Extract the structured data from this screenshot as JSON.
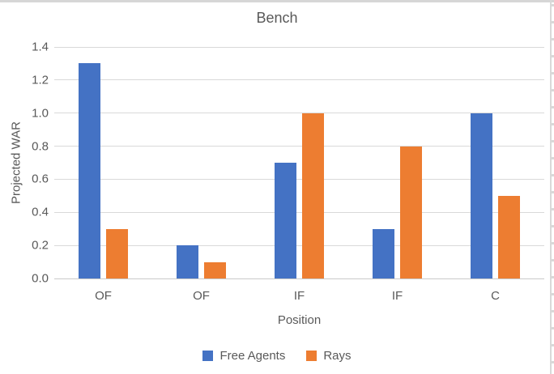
{
  "chart_data": {
    "type": "bar",
    "title": "Bench",
    "xlabel": "Position",
    "ylabel": "Projected WAR",
    "categories": [
      "OF",
      "OF",
      "IF",
      "IF",
      "C"
    ],
    "series": [
      {
        "name": "Free Agents",
        "color": "#4472C4",
        "values": [
          1.3,
          0.2,
          0.7,
          0.3,
          1.0
        ]
      },
      {
        "name": "Rays",
        "color": "#ED7D31",
        "values": [
          0.3,
          0.1,
          1.0,
          0.8,
          0.5
        ]
      }
    ],
    "ylim": [
      0,
      1.4
    ],
    "ytick_labels": [
      "0.0",
      "0.2",
      "0.4",
      "0.6",
      "0.8",
      "1.0",
      "1.2",
      "1.4"
    ],
    "grid": true,
    "legend_position": "bottom"
  },
  "colors": {
    "background": "#ffffff",
    "grid": "#d9d9d9",
    "text": "#595959",
    "border": "#d6d6d6",
    "series_blue": "#4472C4",
    "series_orange": "#ED7D31"
  }
}
